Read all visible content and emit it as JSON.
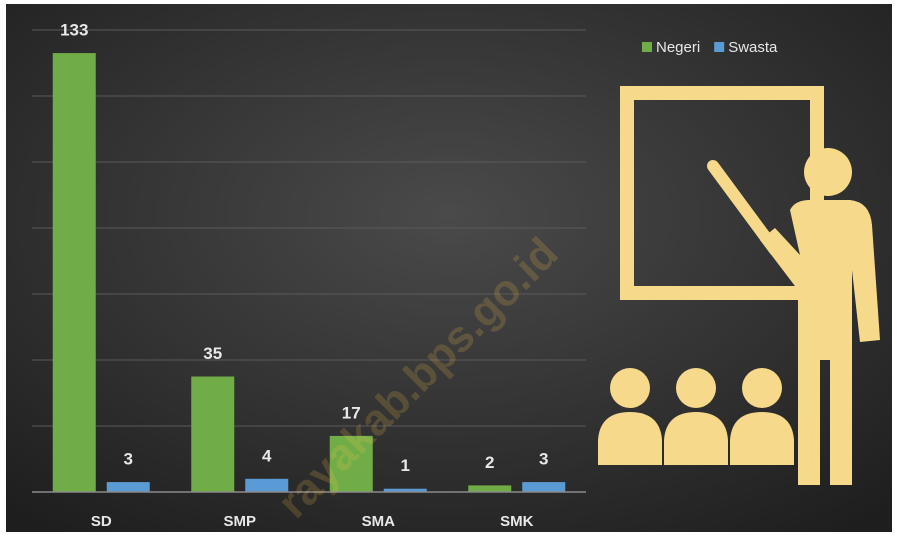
{
  "chart_data": {
    "type": "bar",
    "categories": [
      "SD",
      "SMP",
      "SMA",
      "SMK"
    ],
    "series": [
      {
        "name": "Negeri",
        "color": "#70ad47",
        "values": [
          133,
          35,
          17,
          2
        ]
      },
      {
        "name": "Swasta",
        "color": "#5b9bd5",
        "values": [
          3,
          4,
          1,
          3
        ]
      }
    ],
    "ylim": [
      0,
      140
    ],
    "yticks": [
      0,
      20,
      40,
      60,
      80,
      100,
      120,
      140
    ],
    "grid": true,
    "legend": "top-right",
    "watermark": "rayakab.bps.go.id"
  }
}
